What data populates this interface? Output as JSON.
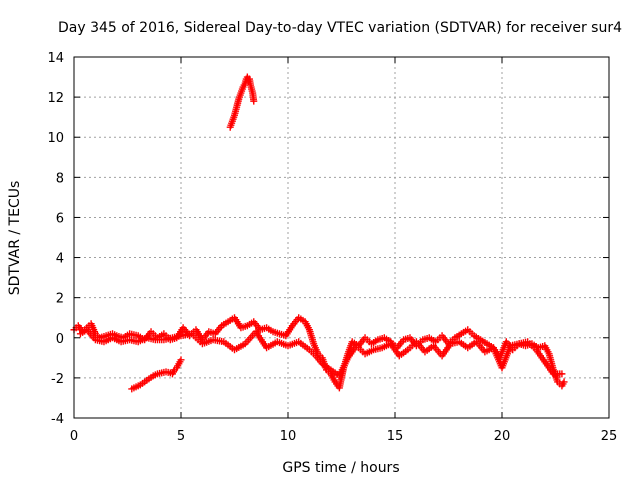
{
  "chart_data": {
    "type": "scatter",
    "title": "Day 345 of 2016, Sidereal Day-to-day VTEC variation (SDTVAR) for receiver sur4",
    "xlabel": "GPS time / hours",
    "ylabel": "SDTVAR / TECUs",
    "xlim": [
      0,
      25
    ],
    "ylim": [
      -4,
      14
    ],
    "xticks": [
      "0",
      "5",
      "10",
      "15",
      "20",
      "25"
    ],
    "yticks": [
      "-4",
      "-2",
      "0",
      "2",
      "4",
      "6",
      "8",
      "10",
      "12",
      "14"
    ],
    "grid": true,
    "marker": "+",
    "color": "#ff0000",
    "series": [
      {
        "name": "main",
        "x": [
          0.0,
          0.2,
          0.4,
          0.6,
          0.8,
          1.0,
          1.2,
          1.5,
          1.8,
          2.0,
          2.3,
          2.6,
          3.0,
          3.3,
          3.6,
          3.9,
          4.2,
          4.5,
          4.8,
          5.1,
          5.4,
          5.7,
          6.0,
          6.3,
          6.6,
          6.9,
          7.2,
          7.5,
          7.8,
          8.1,
          8.4,
          8.7,
          9.0,
          9.3,
          9.6,
          9.9,
          10.2,
          10.5,
          10.8,
          11.0,
          11.2,
          11.4,
          11.6,
          11.8,
          12.0,
          12.2,
          12.4,
          12.6,
          12.8,
          13.0,
          13.3,
          13.6,
          13.9,
          14.2,
          14.5,
          14.8,
          15.1,
          15.4,
          15.7,
          16.0,
          16.3,
          16.6,
          16.9,
          17.2,
          17.5,
          17.8,
          18.1,
          18.4,
          18.7,
          19.0,
          19.3,
          19.6,
          19.9,
          20.2,
          20.5,
          20.8,
          21.1,
          21.4,
          21.7,
          22.0,
          22.2,
          22.4,
          22.6,
          22.8,
          22.9
        ],
        "y": [
          0.4,
          0.6,
          0.3,
          0.5,
          0.7,
          0.2,
          0.0,
          0.1,
          0.2,
          0.1,
          0.0,
          0.2,
          0.1,
          -0.1,
          0.3,
          0.0,
          0.2,
          -0.1,
          0.0,
          0.5,
          0.1,
          0.4,
          -0.1,
          0.3,
          0.2,
          0.6,
          0.8,
          1.0,
          0.5,
          0.6,
          0.8,
          0.4,
          0.5,
          0.3,
          0.2,
          0.1,
          0.6,
          1.0,
          0.8,
          0.4,
          -0.3,
          -0.8,
          -1.0,
          -1.6,
          -1.8,
          -2.2,
          -2.5,
          -1.5,
          -0.8,
          -0.2,
          -0.4,
          0.0,
          -0.3,
          -0.1,
          0.0,
          -0.2,
          -0.5,
          -0.1,
          0.0,
          -0.4,
          -0.1,
          0.0,
          -0.2,
          0.1,
          -0.3,
          0.0,
          0.2,
          0.4,
          0.1,
          -0.1,
          -0.3,
          -0.5,
          -1.0,
          -0.2,
          -0.6,
          -0.3,
          -0.4,
          -0.3,
          -0.5,
          -0.4,
          -0.8,
          -1.6,
          -2.2,
          -2.4,
          -2.2
        ]
      },
      {
        "name": "lower-band",
        "x": [
          0.3,
          0.6,
          1.0,
          1.4,
          1.8,
          2.2,
          2.6,
          3.0,
          3.4,
          3.8,
          4.2,
          4.6,
          5.0,
          5.5,
          6.0,
          6.5,
          7.0,
          7.5,
          8.0,
          8.5,
          9.0,
          9.5,
          10.0,
          10.5,
          11.0,
          11.3,
          11.6,
          12.0,
          12.4,
          12.8,
          13.2,
          13.6,
          14.0,
          14.4,
          14.8,
          15.2,
          15.6,
          16.0,
          16.4,
          16.8,
          17.2,
          17.6,
          18.0,
          18.4,
          18.8,
          19.2,
          19.6,
          20.0,
          20.4,
          20.8,
          21.2,
          21.6,
          22.0,
          22.4,
          22.8
        ],
        "y": [
          0.2,
          0.4,
          -0.1,
          -0.2,
          0.0,
          -0.2,
          -0.1,
          -0.2,
          0.0,
          -0.1,
          -0.1,
          0.0,
          0.1,
          0.2,
          -0.3,
          -0.1,
          -0.2,
          -0.6,
          -0.3,
          0.3,
          -0.5,
          -0.2,
          -0.4,
          -0.2,
          -0.6,
          -0.9,
          -1.3,
          -1.6,
          -1.9,
          -1.0,
          -0.4,
          -0.8,
          -0.6,
          -0.5,
          -0.3,
          -0.9,
          -0.6,
          -0.2,
          -0.7,
          -0.4,
          -0.9,
          -0.3,
          -0.2,
          -0.5,
          -0.2,
          -0.7,
          -0.5,
          -1.5,
          -0.4,
          -0.3,
          -0.2,
          -0.6,
          -1.2,
          -1.8,
          -1.8
        ]
      },
      {
        "name": "offset-segment",
        "x": [
          2.7,
          2.9,
          3.1,
          3.3,
          3.5,
          3.7,
          3.9,
          4.1,
          4.3,
          4.5,
          4.6,
          4.7,
          4.8,
          4.9,
          5.0
        ],
        "y": [
          -2.55,
          -2.45,
          -2.35,
          -2.2,
          -2.05,
          -1.9,
          -1.8,
          -1.75,
          -1.7,
          -1.75,
          -1.8,
          -1.6,
          -1.5,
          -1.3,
          -1.1
        ]
      },
      {
        "name": "high-segment",
        "x": [
          7.3,
          7.4,
          7.5,
          7.6,
          7.7,
          7.8,
          7.9,
          8.0,
          8.05,
          8.1,
          8.15,
          8.2,
          8.25,
          8.3,
          8.35,
          8.4
        ],
        "y": [
          10.5,
          10.8,
          11.1,
          11.5,
          11.9,
          12.2,
          12.5,
          12.7,
          12.9,
          13.0,
          12.8,
          12.9,
          12.6,
          12.4,
          12.2,
          11.8
        ]
      }
    ]
  }
}
